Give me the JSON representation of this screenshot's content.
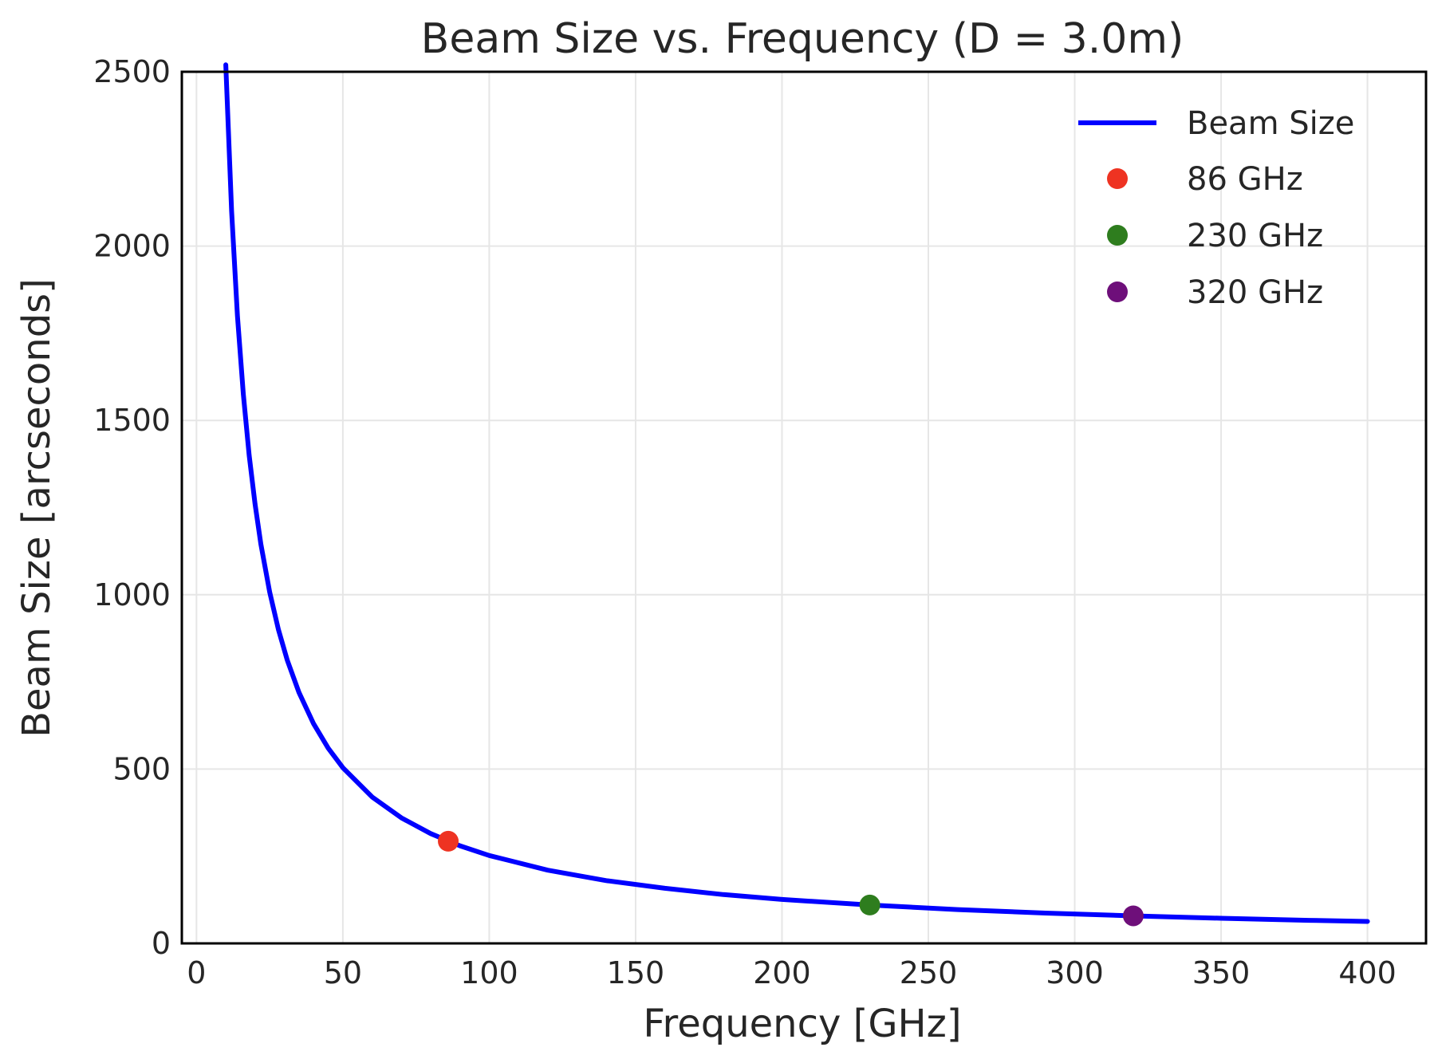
{
  "chart_data": {
    "type": "line",
    "title": "Beam Size vs. Frequency (D = 3.0m)",
    "xlabel": "Frequency [GHz]",
    "ylabel": "Beam Size [arcseconds]",
    "xlim": [
      -5,
      420
    ],
    "ylim": [
      0,
      2500
    ],
    "xticks": [
      0,
      50,
      100,
      150,
      200,
      250,
      300,
      350,
      400
    ],
    "yticks": [
      0,
      500,
      1000,
      1500,
      2000,
      2500
    ],
    "grid": true,
    "legend_position": "top-right",
    "series": [
      {
        "name": "Beam Size",
        "color": "#0000ff",
        "marker": "none",
        "x": [
          10,
          12,
          14,
          16,
          18,
          20,
          22,
          25,
          28,
          31,
          35,
          40,
          45,
          50,
          60,
          70,
          80,
          90,
          100,
          120,
          140,
          160,
          180,
          200,
          230,
          260,
          290,
          320,
          350,
          380,
          400
        ],
        "y": [
          2520,
          2100,
          1800,
          1575,
          1400,
          1260,
          1145,
          1008,
          900,
          813,
          720,
          630,
          560,
          504,
          420,
          360,
          315,
          280,
          252,
          210,
          180,
          158,
          140,
          126,
          110,
          97,
          87,
          79,
          72,
          66,
          63
        ]
      },
      {
        "name": "86 GHz",
        "color": "#ee3322",
        "marker": "circle",
        "x": [
          86
        ],
        "y": [
          293
        ]
      },
      {
        "name": "230 GHz",
        "color": "#2e7d1e",
        "marker": "circle",
        "x": [
          230
        ],
        "y": [
          110
        ]
      },
      {
        "name": "320 GHz",
        "color": "#6e0f7a",
        "marker": "circle",
        "x": [
          320
        ],
        "y": [
          79
        ]
      }
    ]
  }
}
